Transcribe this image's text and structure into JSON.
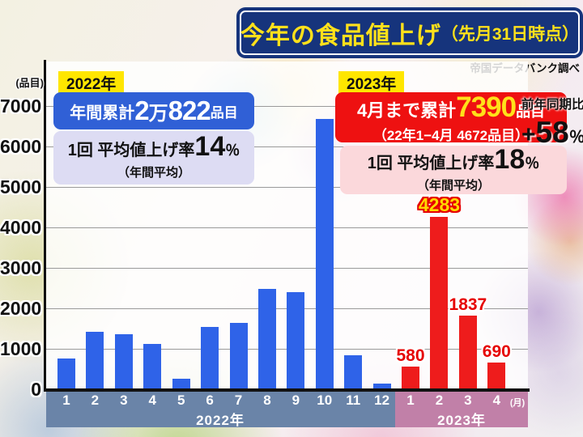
{
  "title": {
    "main": "今年の食品値上げ",
    "suffix": "（先月31日時点）"
  },
  "source": "帝国データバンク調べ",
  "y_axis": {
    "unit": "(品目)",
    "ticks": [
      7000,
      6000,
      5000,
      4000,
      3000,
      2000,
      1000,
      0
    ]
  },
  "x_axis": {
    "months_2022": [
      "1",
      "2",
      "3",
      "4",
      "5",
      "6",
      "7",
      "8",
      "9",
      "10",
      "11",
      "12"
    ],
    "months_2023": [
      "1",
      "2",
      "3",
      "4"
    ],
    "unit": "(月)",
    "band_2022_label": "2022年",
    "band_2023_label": "2023年"
  },
  "panel_2022": {
    "badge": "2022年",
    "total_prefix": "年間累計",
    "total_n1": "2",
    "total_unit10k": "万",
    "total_n2": "822",
    "total_suffix": "品目",
    "rate_label": "1回 平均値上げ率",
    "rate_value": "14",
    "rate_percent": "％",
    "rate_note": "（年間平均）"
  },
  "panel_2023": {
    "badge": "2023年",
    "total_prefix": "4月まで累計",
    "total_value": "7390",
    "total_suffix": "品目",
    "compare_note": "（22年1−4月 4672品目）",
    "rate_label": "1回 平均値上げ率",
    "rate_value": "18",
    "rate_percent": "％",
    "rate_note": "（年間平均）"
  },
  "yoy": {
    "label": "前年同期比",
    "sign": "+",
    "value": "58",
    "percent": "％"
  },
  "chart_data": {
    "type": "bar",
    "title": "今年の食品値上げ（先月31日時点）",
    "ylabel": "品目",
    "ylim": [
      0,
      7000
    ],
    "grid": true,
    "x_unit": "月",
    "series": [
      {
        "name": "2022年",
        "color": "#2f63e8",
        "categories": [
          "1",
          "2",
          "3",
          "4",
          "5",
          "6",
          "7",
          "8",
          "9",
          "10",
          "11",
          "12"
        ],
        "values": [
          780,
          1440,
          1380,
          1140,
          280,
          1560,
          1660,
          2500,
          2420,
          6700,
          860,
          160
        ],
        "values_estimated_from_pixels": true,
        "annual_total": "2万822品目",
        "avg_rate": "14%"
      },
      {
        "name": "2023年",
        "color": "#ee1c1c",
        "categories": [
          "1",
          "2",
          "3",
          "4"
        ],
        "values": [
          580,
          4283,
          1837,
          690
        ],
        "data_labels": [
          "580",
          "4283",
          "1837",
          "690"
        ],
        "peak_label_index": 1,
        "cumulative_total_april": "7390品目",
        "avg_rate": "18%",
        "yoy_change": "+58%"
      }
    ]
  },
  "colors": {
    "title_bg": "#16347c",
    "title_text": "#ffe11a",
    "bar_2022": "#2f63e8",
    "bar_2023": "#ee1c1c",
    "band_2022": "#6a84a8",
    "band_2023": "#c180a8",
    "badge_bg": "#ffe600",
    "box_blue": "#3060d6",
    "box_lavender": "#dddcf3",
    "box_red": "#ee1111",
    "box_pink": "#fbd8db",
    "label_red": "#e60000",
    "label_peak": "#ffd800"
  }
}
